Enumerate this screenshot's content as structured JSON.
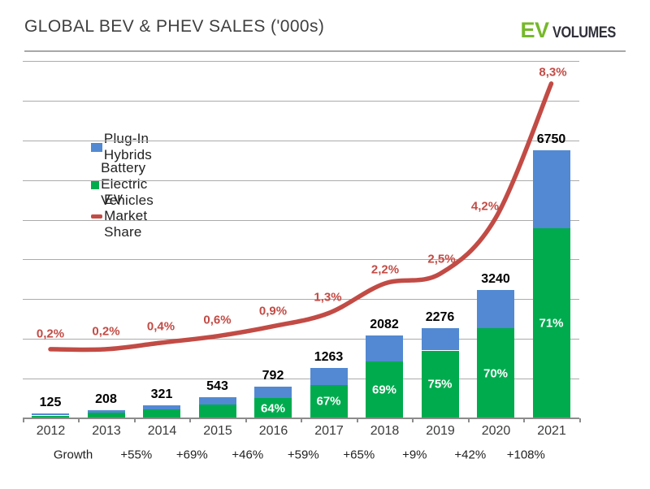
{
  "header": {
    "title": "GLOBAL BEV & PHEV SALES ('000s)",
    "logo_ev": "EV",
    "logo_volumes": "VOLUMES"
  },
  "legend": {
    "position": "inside-top-left",
    "items": [
      {
        "label": "Plug-In Hybrids",
        "color": "#5289D2",
        "marker": "square"
      },
      {
        "label": "Battery Electric Vehicles",
        "color": "#00AB4E",
        "marker": "square"
      },
      {
        "label": "EV Market Share",
        "color": "#C24B45",
        "marker": "line"
      }
    ]
  },
  "colors": {
    "phev_blue": "#5289D2",
    "bev_green": "#00AB4E",
    "share_red": "#C24B45",
    "gridline_gray": "#ABABAB",
    "axis_gray": "#8C8C8C",
    "logo_green": "#76B82A",
    "title_gray": "#3F3F3F"
  },
  "chart_data": {
    "type": "bar",
    "subtype": "stacked-bars-with-line-overlay",
    "title": "GLOBAL BEV & PHEV SALES ('000s)",
    "xlabel": "",
    "ylabel": "",
    "grid": true,
    "categories": [
      "2012",
      "2013",
      "2014",
      "2015",
      "2016",
      "2017",
      "2018",
      "2019",
      "2020",
      "2021"
    ],
    "totals": [
      125,
      208,
      321,
      543,
      792,
      1263,
      2082,
      2276,
      3240,
      6750
    ],
    "total_labels": [
      "125",
      "208",
      "321",
      "543",
      "792",
      "1263",
      "2082",
      "2276",
      "3240",
      "6750"
    ],
    "series": [
      {
        "name": "Battery Electric Vehicles",
        "type": "bar",
        "role": "stack-bottom"
      },
      {
        "name": "Plug-In Hybrids",
        "type": "bar",
        "role": "stack-top"
      },
      {
        "name": "EV Market Share",
        "type": "line",
        "values": [
          0.2,
          0.2,
          0.4,
          0.6,
          0.9,
          1.3,
          2.2,
          2.5,
          4.2,
          8.3
        ]
      }
    ],
    "bev_fraction_visual": [
      0.58,
      0.68,
      0.7,
      0.63,
      0.64,
      0.67,
      0.69,
      0.75,
      0.7,
      0.71
    ],
    "bev_pct_labels": [
      null,
      null,
      null,
      null,
      "64%",
      "67%",
      "69%",
      "75%",
      "70%",
      "71%"
    ],
    "share_labels": [
      "0,2%",
      "0,2%",
      "0,4%",
      "0,6%",
      "0,9%",
      "1,3%",
      "2,2%",
      "2,5%",
      "4,2%",
      "8,3%"
    ],
    "growth_row": {
      "title": "Growth",
      "values": [
        "+55%",
        "+69%",
        "+46%",
        "+59%",
        "+65%",
        "+9%",
        "+42%",
        "+108%"
      ]
    },
    "y_axis": {
      "min": 0,
      "max": 9000,
      "step": 1000,
      "labels_visible": false
    },
    "share_axis": {
      "labels_visible": false
    }
  }
}
